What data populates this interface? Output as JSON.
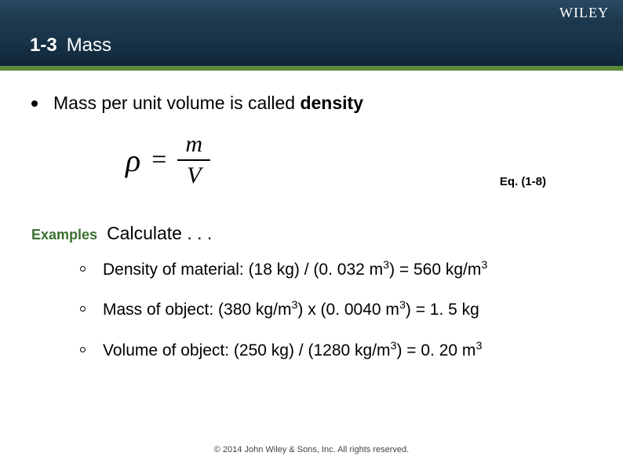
{
  "brand": {
    "logo": "WILEY"
  },
  "header": {
    "section_number": "1-3",
    "section_title": "Mass",
    "band_colors": {
      "top": "#1a3a52",
      "title": "#102a3d",
      "accent": "#5a8a3a"
    }
  },
  "bullet": {
    "text_prefix": "Mass per unit volume is called ",
    "text_bold": "density"
  },
  "equation": {
    "lhs": "ρ",
    "equals": "=",
    "numerator": "m",
    "denominator": "V",
    "label": "Eq. (1-8)"
  },
  "examples": {
    "label": "Examples",
    "heading": "Calculate . . .",
    "label_color": "#3a7030",
    "items": [
      {
        "prefix": "Density of material: (18 kg) / (0. 032 m",
        "sup1": "3",
        "mid": ") = 560 kg/m",
        "sup2": "3",
        "suffix": ""
      },
      {
        "prefix": "Mass of object: (380 kg/m",
        "sup1": "3",
        "mid": ") x (0. 0040 m",
        "sup2": "3",
        "suffix": ") = 1. 5 kg"
      },
      {
        "prefix": "Volume of object: (250 kg) / (1280 kg/m",
        "sup1": "3",
        "mid": ") =  0. 20 m",
        "sup2": "3",
        "suffix": ""
      }
    ]
  },
  "footer": {
    "copyright": "© 2014 John Wiley & Sons, Inc. All rights reserved."
  }
}
